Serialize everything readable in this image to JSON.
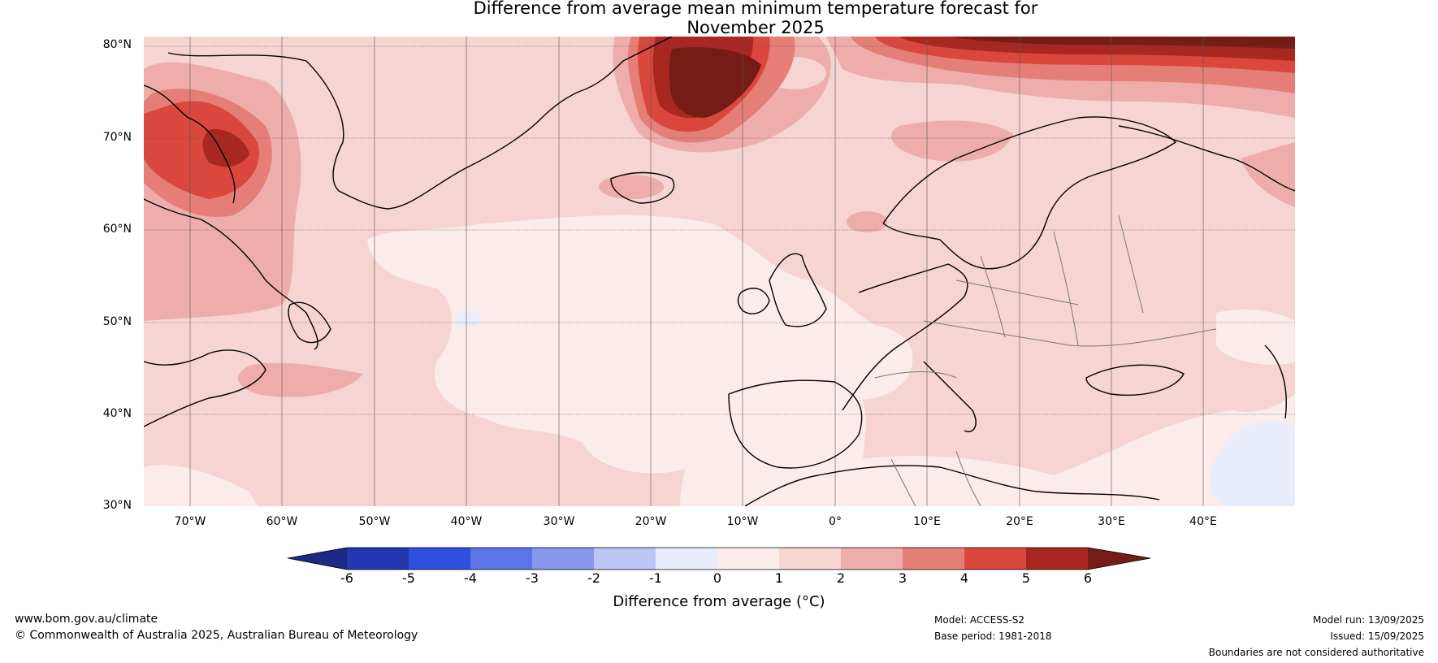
{
  "title": {
    "line1": "Difference from average mean minimum temperature forecast for",
    "line2": "November 2025"
  },
  "axes": {
    "lat_labels": [
      "80°N",
      "70°N",
      "60°N",
      "50°N",
      "40°N",
      "30°N"
    ],
    "lon_labels": [
      "70°W",
      "60°W",
      "50°W",
      "40°W",
      "30°W",
      "20°W",
      "10°W",
      "0°",
      "10°E",
      "20°E",
      "30°E",
      "40°E"
    ]
  },
  "colorbar": {
    "ticks": [
      "-6",
      "-5",
      "-4",
      "-3",
      "-2",
      "-1",
      "0",
      "1",
      "2",
      "3",
      "4",
      "5",
      "6"
    ],
    "label": "Difference from average (°C)",
    "colors": {
      "below_-6": "#1a2a85",
      "-6_-5": "#2237b0",
      "-5_-4": "#2f4fe0",
      "-4_-3": "#5c74e6",
      "-3_-2": "#8797eb",
      "-2_-1": "#bcc6f4",
      "-1_0": "#e8ecfb",
      "0_1": "#fbeceb",
      "1_2": "#f5d4d2",
      "2_3": "#eeadaa",
      "3_4": "#e57e77",
      "4_5": "#d9473f",
      "5_6": "#a82721",
      "above_6": "#761c17"
    }
  },
  "footer": {
    "website": "www.bom.gov.au/climate",
    "copyright": "© Commonwealth of Australia 2025, Australian Bureau of Meteorology",
    "model": "Model: ACCESS-S2",
    "base_period": "Base period: 1981-2018",
    "model_run": "Model run: 13/09/2025",
    "issued": "Issued: 15/09/2025",
    "disclaimer": "Boundaries are not considered authoritative"
  }
}
